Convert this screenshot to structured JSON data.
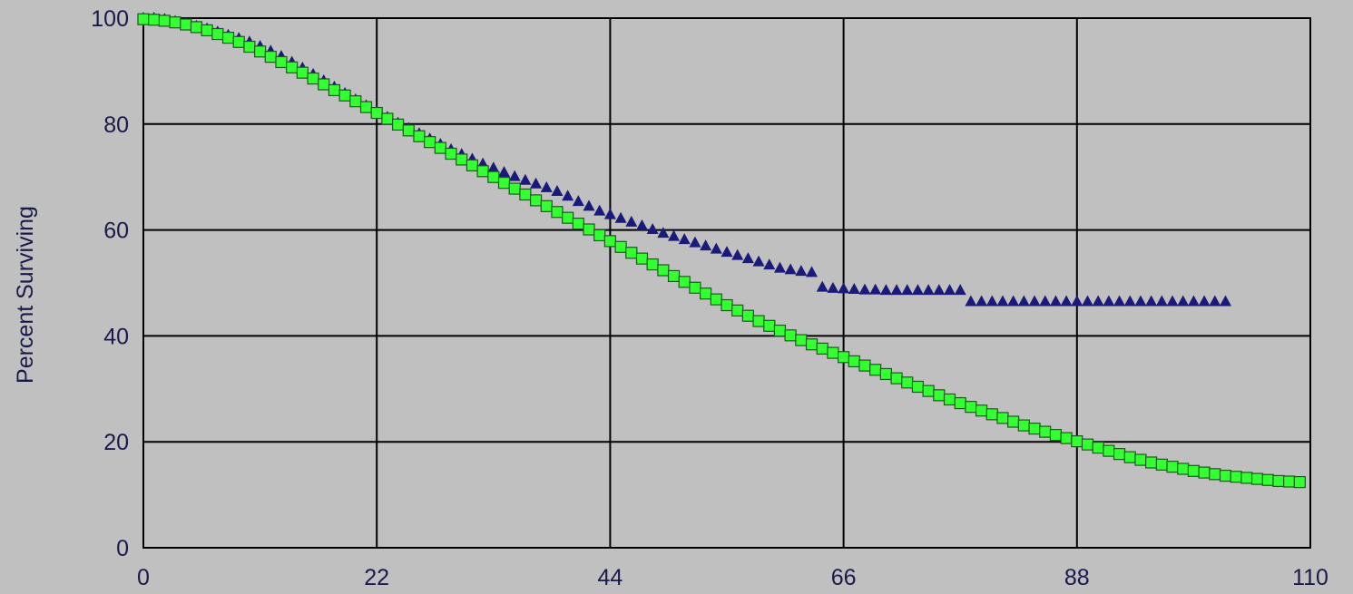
{
  "chart_data": {
    "type": "scatter",
    "title": "",
    "xlabel": "",
    "ylabel": "Percent Surviving",
    "xlim": [
      0,
      110
    ],
    "ylim": [
      0,
      100
    ],
    "x_ticks": [
      "0",
      "22",
      "44",
      "66",
      "88",
      "110"
    ],
    "y_ticks": [
      "0",
      "20",
      "40",
      "60",
      "80",
      "100"
    ],
    "grid": true,
    "legend": "none",
    "colors": {
      "background": "#c0c0c0",
      "grid": "#000000",
      "series_a": "#1a1a7a",
      "series_b": "#33ff33",
      "series_b_edge": "#1a5a1a"
    },
    "series": [
      {
        "marker": "triangle",
        "color": "#1a1a7a",
        "x": [
          0,
          1,
          2,
          3,
          4,
          5,
          6,
          7,
          8,
          9,
          10,
          11,
          12,
          13,
          14,
          15,
          16,
          17,
          18,
          19,
          20,
          21,
          22,
          23,
          24,
          25,
          26,
          27,
          28,
          29,
          30,
          31,
          32,
          33,
          34,
          35,
          36,
          37,
          38,
          39,
          40,
          41,
          42,
          43,
          44,
          45,
          46,
          47,
          48,
          49,
          50,
          51,
          52,
          53,
          54,
          55,
          56,
          57,
          58,
          59,
          60,
          61,
          62,
          63,
          64,
          65,
          66,
          67,
          68,
          69,
          70,
          71,
          72,
          73,
          74,
          75,
          76,
          77,
          78,
          79,
          80,
          81,
          82,
          83,
          84,
          85,
          86,
          87,
          88,
          89,
          90,
          91,
          92,
          93,
          94,
          95,
          96,
          97,
          98,
          99,
          100,
          101,
          102
        ],
        "y": [
          100,
          100,
          99.8,
          99.4,
          99,
          98.5,
          98,
          97.4,
          96.8,
          96.2,
          95.5,
          94.7,
          93.8,
          92.8,
          91.7,
          90.6,
          89.4,
          88.2,
          87,
          85.8,
          84.6,
          83.5,
          82.4,
          81.3,
          80.2,
          79.2,
          78.2,
          77.2,
          76.2,
          75.2,
          74.3,
          73.4,
          72.5,
          71.7,
          70.9,
          70.1,
          69.4,
          68.7,
          68,
          67.3,
          66.4,
          65.4,
          64.5,
          63.6,
          62.9,
          62.2,
          61.5,
          60.8,
          60.1,
          59.4,
          58.8,
          58.2,
          57.6,
          57,
          56.4,
          55.8,
          55.2,
          54.6,
          54,
          53.4,
          52.8,
          52.5,
          52.2,
          52,
          49.2,
          49,
          48.9,
          48.8,
          48.7,
          48.7,
          48.6,
          48.6,
          48.6,
          48.6,
          48.6,
          48.6,
          48.6,
          48.6,
          46.5,
          46.5,
          46.5,
          46.5,
          46.5,
          46.5,
          46.5,
          46.5,
          46.5,
          46.5,
          46.5,
          46.5,
          46.5,
          46.5,
          46.5,
          46.5,
          46.5,
          46.5,
          46.5,
          46.5,
          46.5,
          46.5,
          46.5,
          46.5,
          46.5
        ]
      },
      {
        "marker": "square",
        "color": "#33ff33",
        "x": [
          0,
          1,
          2,
          3,
          4,
          5,
          6,
          7,
          8,
          9,
          10,
          11,
          12,
          13,
          14,
          15,
          16,
          17,
          18,
          19,
          20,
          21,
          22,
          23,
          24,
          25,
          26,
          27,
          28,
          29,
          30,
          31,
          32,
          33,
          34,
          35,
          36,
          37,
          38,
          39,
          40,
          41,
          42,
          43,
          44,
          45,
          46,
          47,
          48,
          49,
          50,
          51,
          52,
          53,
          54,
          55,
          56,
          57,
          58,
          59,
          60,
          61,
          62,
          63,
          64,
          65,
          66,
          67,
          68,
          69,
          70,
          71,
          72,
          73,
          74,
          75,
          76,
          77,
          78,
          79,
          80,
          81,
          82,
          83,
          84,
          85,
          86,
          87,
          88,
          89,
          90,
          91,
          92,
          93,
          94,
          95,
          96,
          97,
          98,
          99,
          100,
          101,
          102,
          103,
          104,
          105,
          106,
          107,
          108,
          109
        ],
        "y": [
          99.8,
          99.7,
          99.5,
          99.2,
          98.8,
          98.3,
          97.7,
          97,
          96.3,
          95.5,
          94.6,
          93.7,
          92.7,
          91.7,
          90.7,
          89.7,
          88.6,
          87.5,
          86.4,
          85.4,
          84.3,
          83.2,
          82.1,
          81,
          79.9,
          78.8,
          77.7,
          76.6,
          75.5,
          74.4,
          73.3,
          72.2,
          71.1,
          70,
          68.9,
          67.8,
          66.7,
          65.6,
          64.5,
          63.4,
          62.3,
          61.2,
          60.1,
          59,
          57.9,
          56.8,
          55.7,
          54.6,
          53.5,
          52.4,
          51.3,
          50.2,
          49.1,
          48,
          46.9,
          45.8,
          44.8,
          43.8,
          42.8,
          41.9,
          41,
          40.1,
          39.2,
          38.4,
          37.6,
          36.8,
          36,
          35.2,
          34.4,
          33.6,
          32.8,
          32,
          31.2,
          30.4,
          29.6,
          28.8,
          28,
          27.3,
          26.6,
          25.9,
          25.2,
          24.5,
          23.8,
          23.1,
          22.5,
          21.9,
          21.3,
          20.7,
          20.1,
          19.5,
          18.9,
          18.3,
          17.7,
          17.1,
          16.6,
          16.1,
          15.7,
          15.3,
          14.9,
          14.5,
          14.2,
          13.9,
          13.6,
          13.4,
          13.2,
          13,
          12.8,
          12.6,
          12.5,
          12.4
        ]
      }
    ]
  }
}
